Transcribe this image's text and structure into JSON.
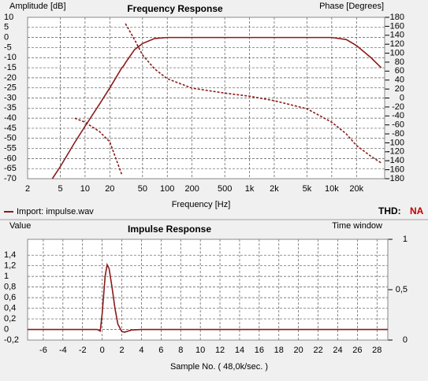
{
  "chart_data": [
    {
      "type": "line",
      "title": "Frequency Response",
      "ylabel": "Amplitude [dB]",
      "y2label": "Phase [Degrees]",
      "xlabel": "Frequency [Hz]",
      "xscale": "log",
      "grid": true,
      "thd_label": "THD:",
      "thd_value": "NA",
      "x": [
        4,
        5,
        7.5,
        10,
        15,
        20,
        28,
        29.5,
        31,
        40,
        50,
        70,
        100,
        200,
        500,
        1000,
        2000,
        5000,
        10000,
        15000,
        20000,
        30000,
        40000
      ],
      "series": [
        {
          "name": "Import: impulse.wav",
          "color": "#8b1a1a",
          "values": [
            -70,
            -64,
            -52,
            -44,
            -33,
            -25,
            -15,
            -14,
            -12.5,
            -6,
            -3,
            -0.5,
            0,
            0,
            0,
            0,
            0,
            0,
            0,
            -1,
            -4,
            -10,
            -15
          ]
        },
        {
          "color": "#8b1a1a",
          "dash": true,
          "axis": "y2",
          "values": [
            null,
            null,
            -45,
            -54,
            -75,
            -98,
            -171,
            null,
            166,
            130,
            96,
            65,
            43,
            22,
            11,
            4,
            -6,
            -24,
            -54,
            -80,
            -106,
            -130,
            -145
          ]
        }
      ],
      "xlim": [
        2,
        44000
      ],
      "xticks": [
        2,
        5,
        10,
        20,
        50,
        100,
        200,
        500,
        {
          "value": 1000,
          "label": "1k"
        },
        {
          "value": 2000,
          "label": "2k"
        },
        {
          "value": 5000,
          "label": "5k"
        },
        {
          "value": 10000,
          "label": "10k"
        },
        {
          "value": 20000,
          "label": "20k"
        }
      ],
      "ylim": [
        -70,
        10
      ],
      "yticks": [
        10,
        5,
        0,
        -5,
        -10,
        -15,
        -20,
        -25,
        -30,
        -35,
        -40,
        -45,
        -50,
        -55,
        -60,
        -65,
        -70
      ],
      "y2lim": [
        -180,
        180
      ],
      "y2ticks": [
        180,
        160,
        140,
        120,
        100,
        80,
        60,
        40,
        20,
        0,
        -20,
        -40,
        -60,
        -80,
        -100,
        -120,
        -140,
        -160,
        -180
      ]
    },
    {
      "type": "line",
      "title": "Impulse Response",
      "ylabel": "Value",
      "y2label": "Time window",
      "xlabel": "Sample No. ( 48,0k/sec. )",
      "grid": true,
      "x": [
        -7.6,
        -0.5,
        -0.2,
        0,
        0.3,
        0.5,
        0.7,
        1,
        1.3,
        1.6,
        2,
        2.3,
        3,
        4,
        29.1
      ],
      "series": [
        {
          "color": "#8b1a1a",
          "values": [
            0,
            0,
            -0.03,
            0.3,
            1.0,
            1.22,
            1.15,
            0.8,
            0.4,
            0.1,
            -0.04,
            -0.05,
            -0.01,
            0,
            0
          ]
        }
      ],
      "xlim": [
        -7.6,
        29.1
      ],
      "xticks": [
        -6,
        -4,
        -2,
        0,
        2,
        4,
        6,
        8,
        10,
        12,
        14,
        16,
        18,
        20,
        22,
        24,
        26,
        28
      ],
      "ylim": [
        -0.2,
        1.7
      ],
      "yticks": [
        {
          "value": 1.4,
          "label": "1,4"
        },
        {
          "value": 1.2,
          "label": "1,2"
        },
        1,
        {
          "value": 0.8,
          "label": "0,8"
        },
        {
          "value": 0.6,
          "label": "0,6"
        },
        {
          "value": 0.4,
          "label": "0,4"
        },
        {
          "value": 0.2,
          "label": "0,2"
        },
        0,
        {
          "value": -0.2,
          "label": "-0,2"
        }
      ],
      "y2lim": [
        0,
        1
      ],
      "y2ticks": [
        0,
        {
          "value": 0.5,
          "label": "0,5"
        },
        1
      ]
    }
  ]
}
